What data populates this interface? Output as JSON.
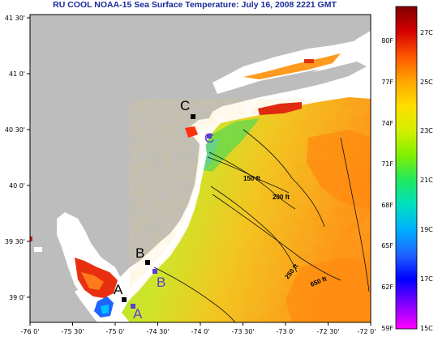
{
  "header": {
    "title": "RU COOL  NOAA-15  Sea Surface Temperature:  July 16, 2008 2221 GMT"
  },
  "map": {
    "lon_labels": [
      "-76 0'",
      "-75 30'",
      "-75 0'",
      "-74 30'",
      "-74 0'",
      "-73 30'",
      "-73 0'",
      "-72 30'",
      "-72 0'"
    ],
    "lat_labels": [
      "41 30'",
      "41 0'",
      "40 30'",
      "40 0'",
      "39 30'",
      "39 0'"
    ],
    "isobaths": [
      "150 ft",
      "200 ft",
      "250 ft",
      "650 ft"
    ],
    "site_labels": {
      "c_black": "C",
      "c_blue": "C",
      "b_black": "B",
      "b_blue": "B",
      "a_black": "A",
      "a_blue": "A"
    },
    "colors": {
      "land": "#bdbdbd",
      "frame": "#000000",
      "title": "#1a2a9a",
      "station_blue": "#5a3fd0"
    }
  },
  "colorbar": {
    "f_labels": [
      "80F",
      "77F",
      "74F",
      "71F",
      "68F",
      "65F",
      "62F",
      "59F"
    ],
    "c_labels": [
      "27C",
      "25C",
      "23C",
      "21C",
      "19C",
      "17C",
      "15C"
    ],
    "gradient_top_to_bottom": [
      "#800000",
      "#d40000",
      "#ff5500",
      "#ffa500",
      "#ffdd00",
      "#d4f000",
      "#80f000",
      "#20e860",
      "#00e0c0",
      "#00b0ff",
      "#1e64ff",
      "#0000ff",
      "#8000ff",
      "#ff00ff"
    ]
  }
}
